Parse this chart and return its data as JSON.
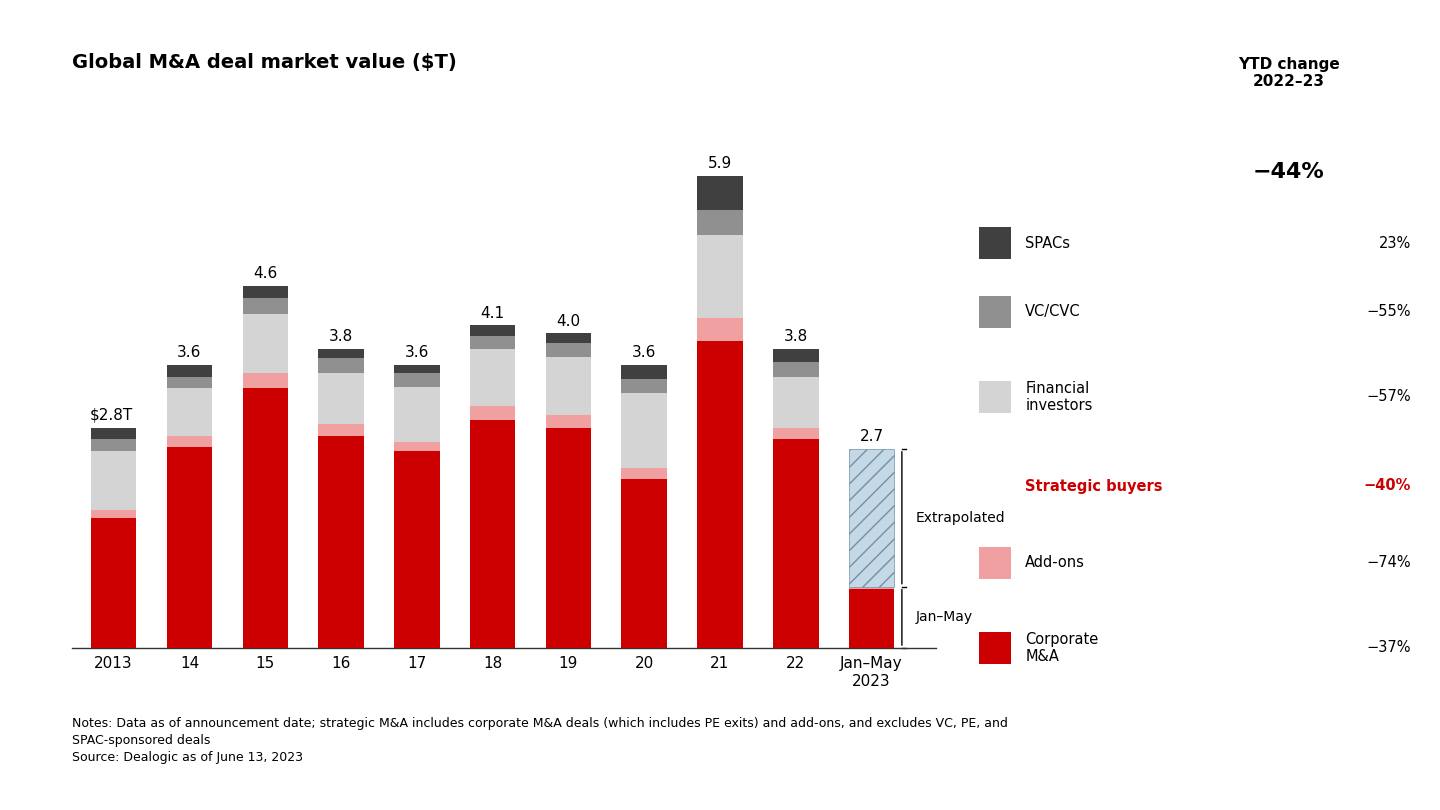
{
  "title": "Global M&A deal market value ($T)",
  "categories": [
    "2013",
    "14",
    "15",
    "16",
    "17",
    "18",
    "19",
    "20",
    "21",
    "22",
    "Jan–May\n2023"
  ],
  "bar_labels": [
    "$2.8T",
    "3.6",
    "4.6",
    "3.8",
    "3.6",
    "4.1",
    "4.0",
    "3.6",
    "5.9",
    "3.8",
    "2.7"
  ],
  "corporate_ma": [
    1.65,
    2.55,
    3.3,
    2.7,
    2.5,
    2.9,
    2.8,
    2.15,
    3.9,
    2.65,
    0.75
  ],
  "addons": [
    0.1,
    0.15,
    0.2,
    0.15,
    0.12,
    0.18,
    0.16,
    0.14,
    0.3,
    0.15,
    0.03
  ],
  "fin_investors": [
    0.75,
    0.6,
    0.75,
    0.65,
    0.7,
    0.72,
    0.74,
    0.95,
    1.05,
    0.65,
    0.13
  ],
  "vc_cvc": [
    0.15,
    0.15,
    0.2,
    0.18,
    0.18,
    0.17,
    0.17,
    0.18,
    0.32,
    0.18,
    0.04
  ],
  "spacs": [
    0.15,
    0.15,
    0.15,
    0.12,
    0.1,
    0.13,
    0.13,
    0.18,
    0.43,
    0.17,
    0.0
  ],
  "extrapolated": [
    0.0,
    0.0,
    0.0,
    0.0,
    0.0,
    0.0,
    0.0,
    0.0,
    0.0,
    0.0,
    1.75
  ],
  "color_corporate": "#cc0000",
  "color_addons": "#f0a0a0",
  "color_fin_investors": "#d4d4d4",
  "color_vc_cvc": "#909090",
  "color_spacs": "#404040",
  "color_extrap_face": "#c5d8e5",
  "color_extrap_edge": "#7090a8",
  "ytd_header": "YTD change\n2022–23",
  "ytd_value": "−44%",
  "notes_line1": "Notes: Data as of announcement date; strategic M&A includes corporate M&A deals (which includes PE exits) and add-ons, and excludes VC, PE, and",
  "notes_line2": "SPAC-sponsored deals",
  "notes_line3": "Source: Dealogic as of June 13, 2023"
}
